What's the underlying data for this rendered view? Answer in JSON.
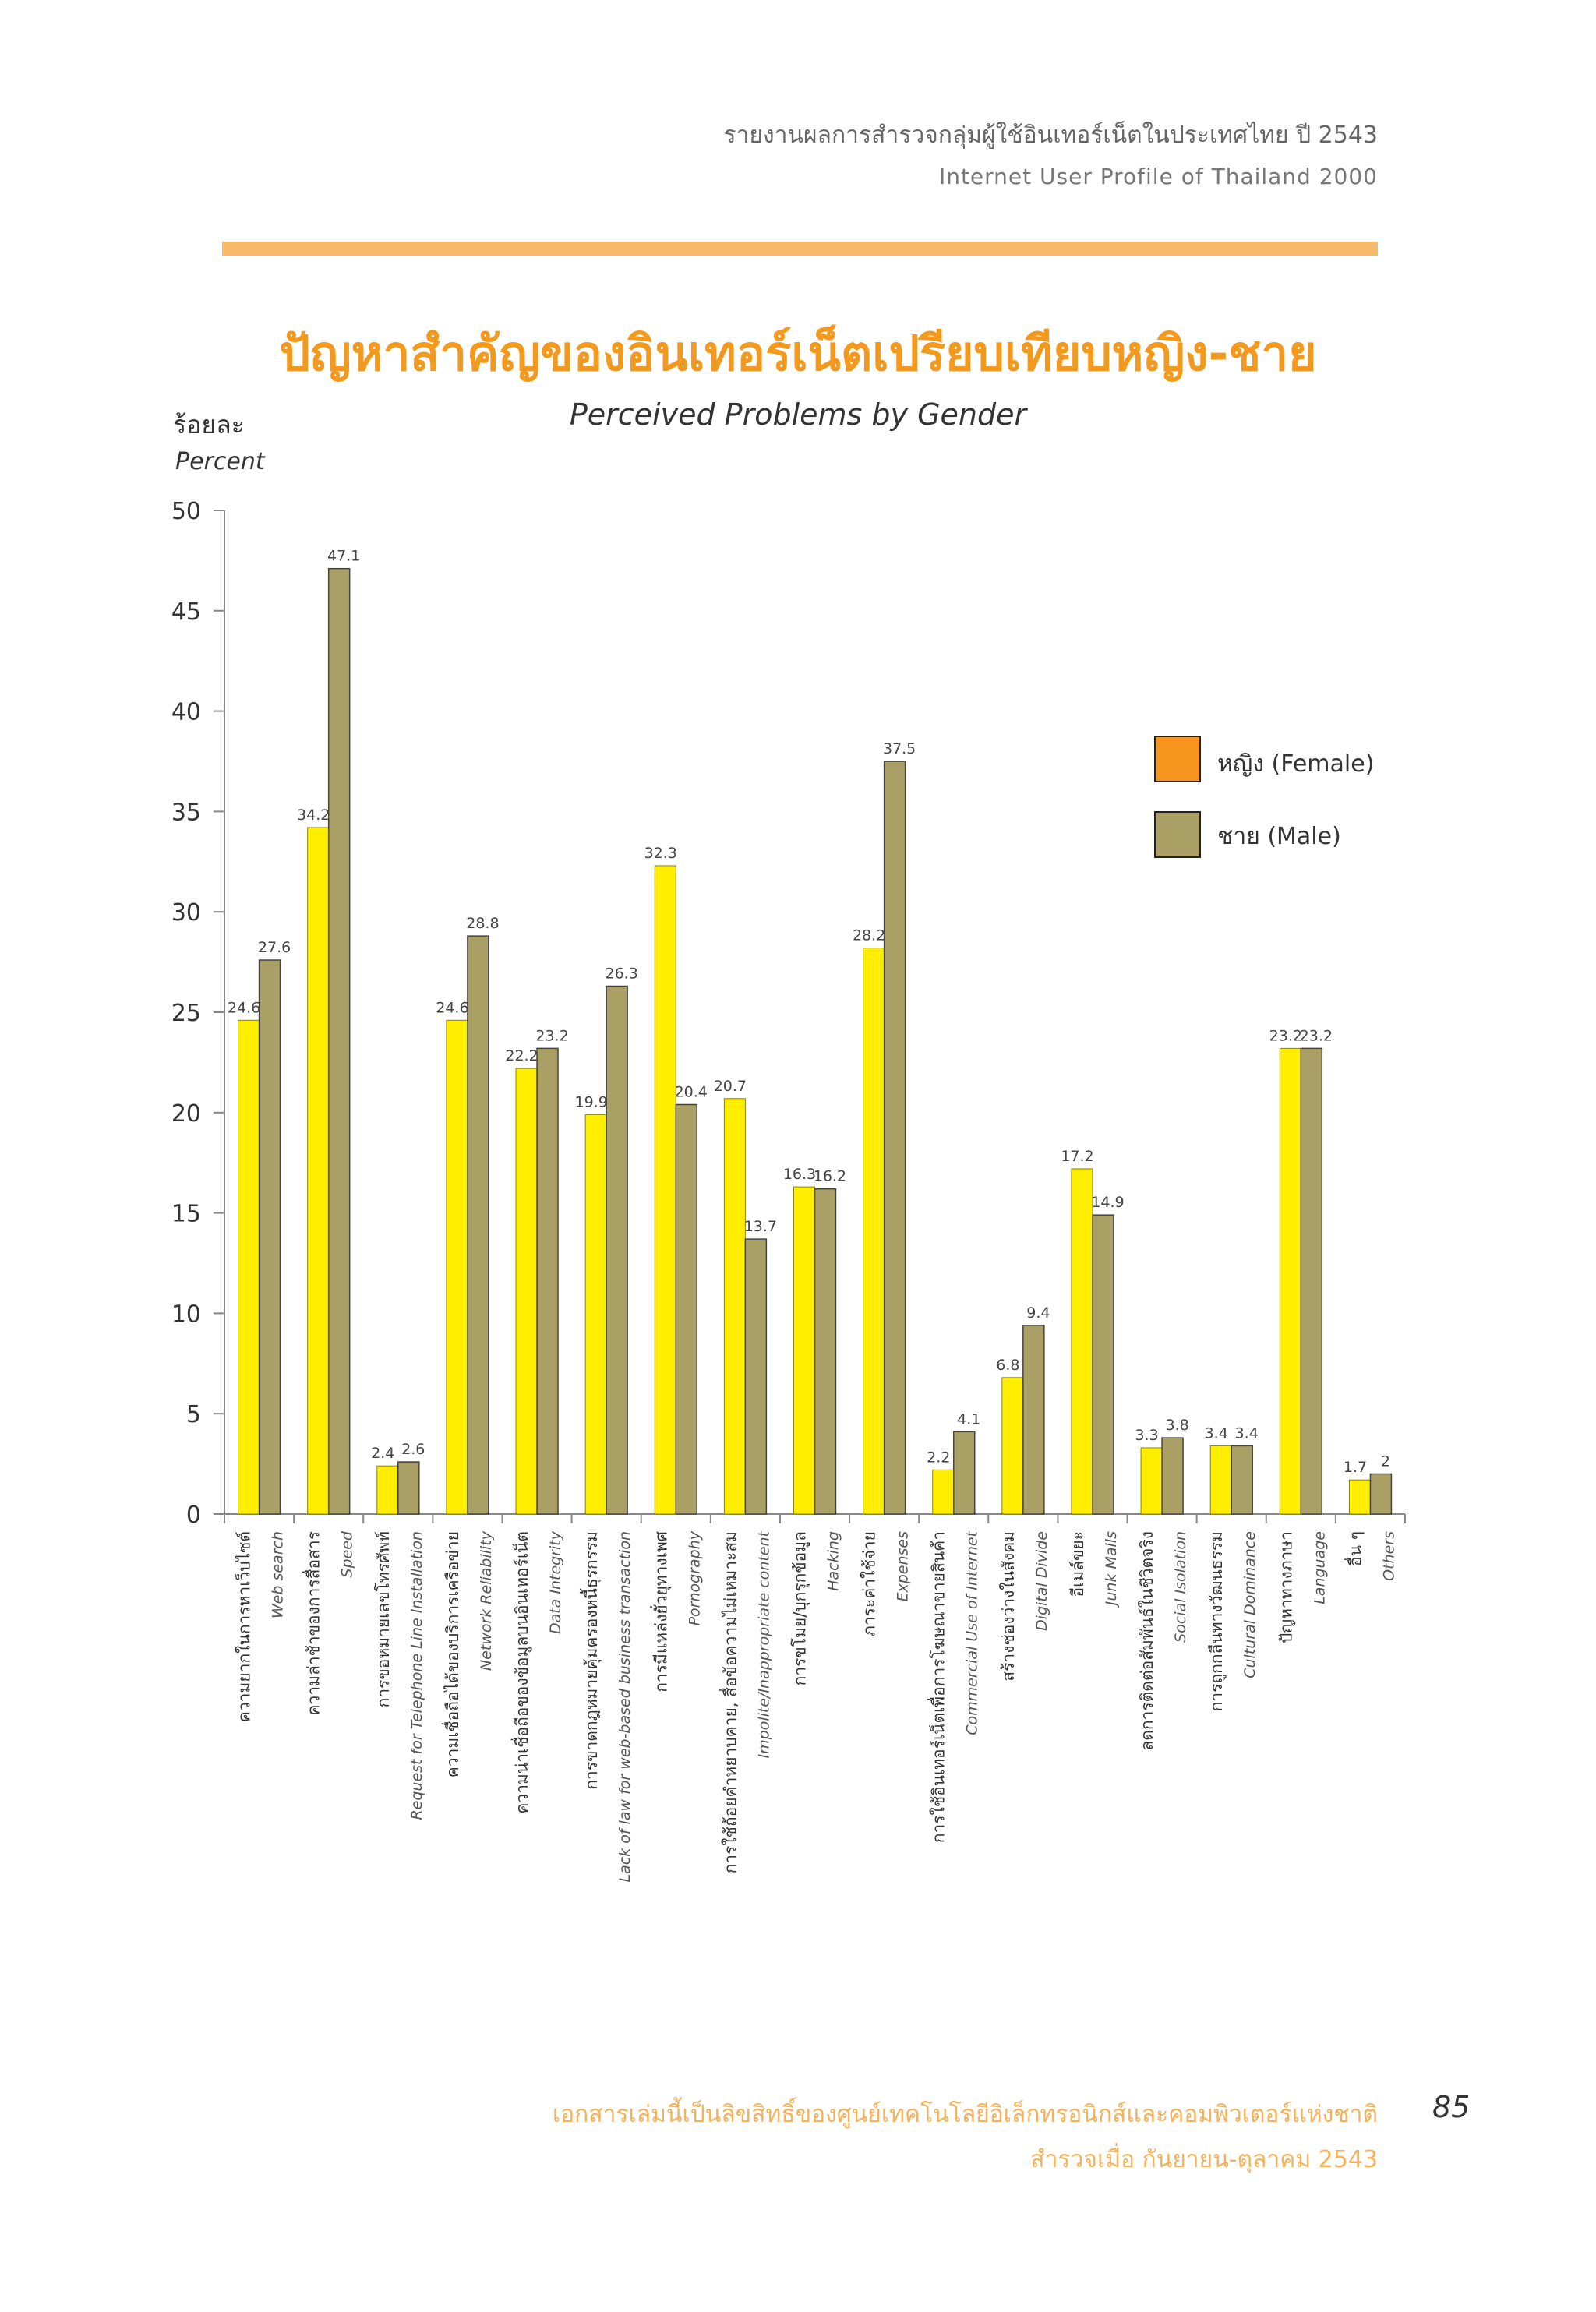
{
  "header": {
    "thai_title": "รายงานผลการสำรวจกลุ่มผู้ใช้อินเทอร์เน็ตในประเทศไทย ปี 2543",
    "english_title": "Internet User Profile of Thailand 2000"
  },
  "footer": {
    "line1": "เอกสารเล่มนี้เป็นลิขสิทธิ์ของศูนย์เทคโนโลยีอิเล็กทรอนิกส์และคอมพิวเตอร์แห่งชาติ",
    "line2": "สำรวจเมื่อ กันยายน-ตุลาคม 2543",
    "page_number": "85"
  },
  "colors": {
    "female": "#ffee00",
    "male": "#aaa065",
    "accent": "#f39a1e"
  },
  "chart_data": {
    "type": "bar",
    "title": "ปัญหาสำคัญของอินเทอร์เน็ตเปรียบเทียบหญิง-ชาย",
    "subtitle": "Perceived Problems by Gender",
    "ylabel_th": "ร้อยละ",
    "ylabel_en": "Percent",
    "ylim": [
      0,
      50
    ],
    "yticks": [
      "0",
      "5",
      "10",
      "15",
      "20",
      "25",
      "30",
      "35",
      "40",
      "45",
      "50"
    ],
    "legend": {
      "position": "right",
      "female_label": "หญิง (Female)",
      "male_label": "ชาย (Male)"
    },
    "categories": [
      {
        "th": "ความยากในการหาเว็บไซต์",
        "en": "Web search"
      },
      {
        "th": "ความล่าช้าของการสื่อสาร",
        "en": "Speed"
      },
      {
        "th": "การขอหมายเลขโทรศัพท์",
        "en": "Request for Telephone Line Installation"
      },
      {
        "th": "ความเชื่อถือได้ของบริการเครือข่าย",
        "en": "Network Reliability"
      },
      {
        "th": "ความน่าเชื่อถือของข้อมูลบนอินเทอร์เน็ต",
        "en": "Data Integrity"
      },
      {
        "th": "การขาดกฎหมายคุ้มครองหนี้ธุรกรรม",
        "en": "Lack of law for web-based business transaction"
      },
      {
        "th": "การมีแหล่งยั่วยุทางเพศ",
        "en": "Pornography"
      },
      {
        "th": "การใช้ถ้อยคำหยาบคาย, สื่อข้อความไม่เหมาะสม",
        "en": "Impolite/Inappropriate content"
      },
      {
        "th": "การขโมย/บุกรุกข้อมูล",
        "en": "Hacking"
      },
      {
        "th": "ภาระค่าใช้จ่าย",
        "en": "Expenses"
      },
      {
        "th": "การใช้อินเทอร์เน็ตเพื่อการโฆษณาขายสินค้า",
        "en": "Commercial Use of Internet"
      },
      {
        "th": "สร้างช่องว่างในสังคม",
        "en": "Digital Divide"
      },
      {
        "th": "อีเมล์ขยะ",
        "en": "Junk Mails"
      },
      {
        "th": "ลดการติดต่อสัมพันธ์ในชีวิตจริง",
        "en": "Social Isolation"
      },
      {
        "th": "การถูกกลืนทางวัฒนธรรม",
        "en": "Cultural Dominance"
      },
      {
        "th": "ปัญหาทางภาษา",
        "en": "Language"
      },
      {
        "th": "อื่น ๆ",
        "en": "Others"
      }
    ],
    "series": [
      {
        "name": "Female",
        "values": [
          24.6,
          34.2,
          2.4,
          24.6,
          22.2,
          19.9,
          32.3,
          20.7,
          16.3,
          28.2,
          2.2,
          6.8,
          17.2,
          3.3,
          3.4,
          23.2,
          1.7
        ]
      },
      {
        "name": "Male",
        "values": [
          27.6,
          47.1,
          2.6,
          28.8,
          23.2,
          26.3,
          20.4,
          13.7,
          16.2,
          37.5,
          4.1,
          9.4,
          14.9,
          3.8,
          3.4,
          23.2,
          2
        ]
      }
    ]
  }
}
